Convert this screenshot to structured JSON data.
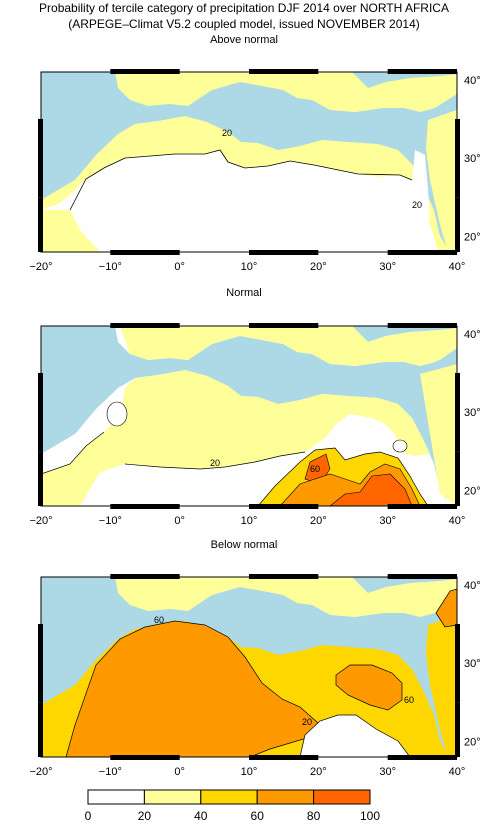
{
  "title": {
    "line1": "Probability of tercile category of precipitation DJF 2014 over NORTH AFRICA",
    "line2": "(ARPEGE–Climat V5.2 coupled model, issued NOVEMBER 2014)"
  },
  "panels": [
    {
      "title": "Above normal",
      "contour_labels": [
        "20",
        "20"
      ]
    },
    {
      "title": "Normal",
      "contour_labels": [
        "20",
        "60"
      ]
    },
    {
      "title": "Below normal",
      "contour_labels": [
        "60",
        "20",
        "60"
      ]
    }
  ],
  "axes": {
    "lon_labels": [
      "−20°",
      "−10°",
      "0°",
      "10°",
      "20°",
      "30°",
      "40°"
    ],
    "lat_labels": [
      "40°",
      "30°",
      "20°"
    ],
    "lon_range": [
      -20,
      40
    ],
    "lat_range": [
      18,
      41
    ]
  },
  "colorbar": {
    "labels": [
      "0",
      "20",
      "40",
      "60",
      "80",
      "100"
    ],
    "colors": [
      "#ffffff",
      "#ffff99",
      "#ffd700",
      "#ff9900",
      "#ff6600"
    ]
  },
  "colors": {
    "sea": "#add8e6",
    "prob_0_20": "#ffffff",
    "prob_20_40": "#ffff99",
    "prob_40_60": "#ffd700",
    "prob_60_80": "#ff9900",
    "prob_80_100": "#ff6600"
  }
}
